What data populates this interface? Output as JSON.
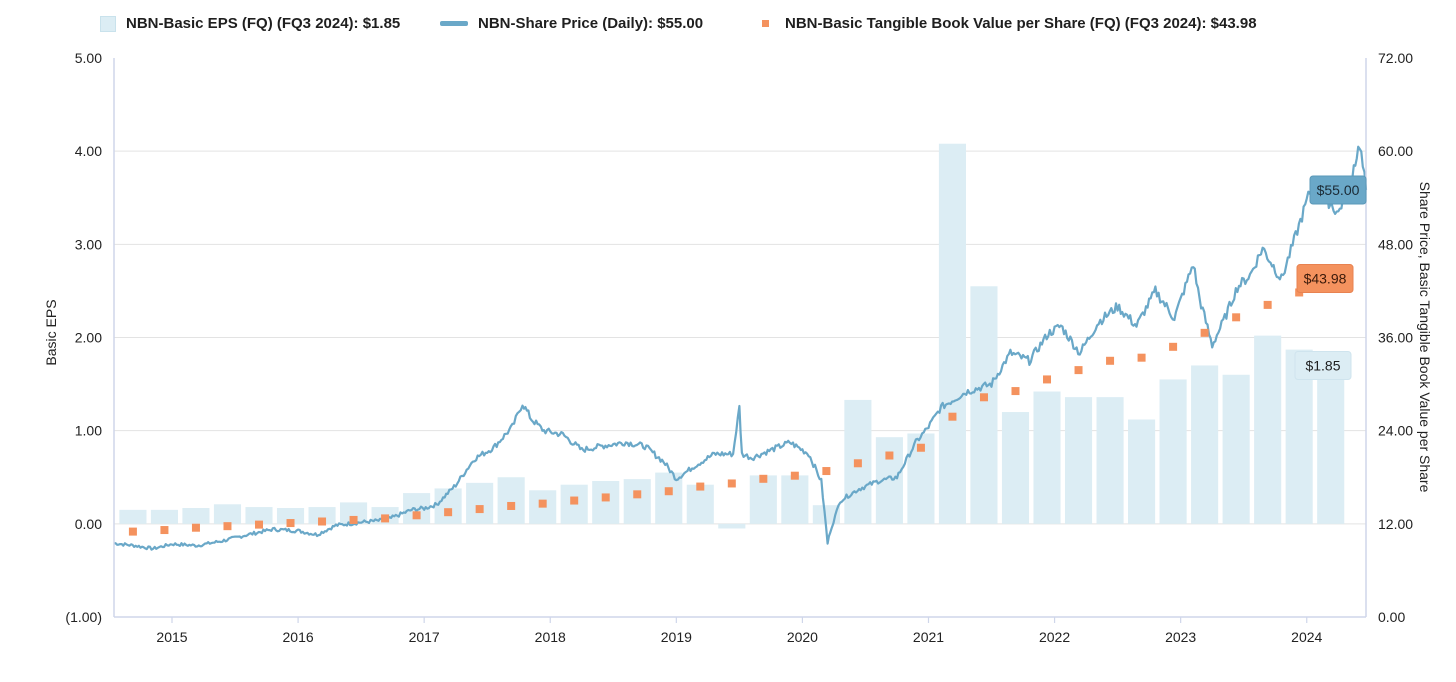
{
  "chart_data": {
    "type": "bar+line+scatter",
    "legend": [
      {
        "label": "NBN-Basic EPS (FQ) (FQ3 2024): $1.85",
        "kind": "bar",
        "color": "#dcedf4"
      },
      {
        "label": "NBN-Share Price (Daily): $55.00",
        "kind": "line",
        "color": "#6aa8c8"
      },
      {
        "label": "NBN-Basic Tangible Book Value per Share (FQ) (FQ3 2024): $43.98",
        "kind": "point",
        "color": "#f4925e"
      }
    ],
    "x_ticks": [
      "2015",
      "2016",
      "2017",
      "2018",
      "2019",
      "2020",
      "2021",
      "2022",
      "2023",
      "2024"
    ],
    "xlim": [
      2014.54,
      2024.47
    ],
    "y_left": {
      "label": "Basic EPS",
      "ticks": [
        "5.00",
        "4.00",
        "3.00",
        "2.00",
        "1.00",
        "0.00",
        "(1.00)"
      ],
      "range": [
        -1,
        5
      ]
    },
    "y_right": {
      "label": "Share Price, Basic Tangible Book Value per Share",
      "ticks": [
        "72.00",
        "60.00",
        "48.00",
        "36.00",
        "24.00",
        "12.00",
        "0.00"
      ],
      "range": [
        0,
        72
      ]
    },
    "eps_bars": {
      "x": [
        2014.69,
        2014.94,
        2015.19,
        2015.44,
        2015.69,
        2015.94,
        2016.19,
        2016.44,
        2016.69,
        2016.94,
        2017.19,
        2017.44,
        2017.69,
        2017.94,
        2018.19,
        2018.44,
        2018.69,
        2018.94,
        2019.19,
        2019.44,
        2019.69,
        2019.94,
        2020.19,
        2020.44,
        2020.69,
        2020.94,
        2021.19,
        2021.44,
        2021.69,
        2021.94,
        2022.19,
        2022.44,
        2022.69,
        2022.94,
        2023.19,
        2023.44,
        2023.69,
        2023.94,
        2024.19
      ],
      "values": [
        0.15,
        0.15,
        0.17,
        0.21,
        0.18,
        0.17,
        0.18,
        0.23,
        0.18,
        0.33,
        0.38,
        0.44,
        0.5,
        0.36,
        0.42,
        0.46,
        0.48,
        0.55,
        0.42,
        -0.05,
        0.52,
        0.52,
        0.2,
        1.33,
        0.93,
        0.97,
        4.08,
        2.55,
        1.2,
        1.42,
        1.36,
        1.36,
        1.12,
        1.55,
        1.7,
        1.6,
        2.02,
        1.87,
        1.85
      ]
    },
    "tbv_points": {
      "x": [
        2014.69,
        2014.94,
        2015.19,
        2015.44,
        2015.69,
        2015.94,
        2016.19,
        2016.44,
        2016.69,
        2016.94,
        2017.19,
        2017.44,
        2017.69,
        2017.94,
        2018.19,
        2018.44,
        2018.69,
        2018.94,
        2019.19,
        2019.44,
        2019.69,
        2019.94,
        2020.19,
        2020.44,
        2020.69,
        2020.94,
        2021.19,
        2021.44,
        2021.69,
        2021.94,
        2022.19,
        2022.44,
        2022.69,
        2022.94,
        2023.19,
        2023.44,
        2023.69,
        2023.94,
        2024.19
      ],
      "values": [
        11.0,
        11.2,
        11.5,
        11.7,
        11.9,
        12.1,
        12.3,
        12.5,
        12.7,
        13.1,
        13.5,
        13.9,
        14.3,
        14.6,
        15.0,
        15.4,
        15.8,
        16.2,
        16.8,
        17.2,
        17.8,
        18.2,
        18.8,
        19.8,
        20.8,
        21.8,
        25.8,
        28.3,
        29.1,
        30.6,
        31.8,
        33.0,
        33.4,
        34.8,
        36.6,
        38.6,
        40.2,
        41.8,
        43.98
      ]
    },
    "price_line": {
      "x": [
        2014.54,
        2014.7,
        2014.85,
        2015.0,
        2015.2,
        2015.4,
        2015.6,
        2015.8,
        2016.0,
        2016.15,
        2016.3,
        2016.5,
        2016.7,
        2016.9,
        2017.0,
        2017.1,
        2017.25,
        2017.4,
        2017.55,
        2017.7,
        2017.78,
        2017.85,
        2017.95,
        2018.1,
        2018.25,
        2018.4,
        2018.6,
        2018.75,
        2018.9,
        2019.0,
        2019.15,
        2019.3,
        2019.45,
        2019.5,
        2019.52,
        2019.6,
        2019.75,
        2019.9,
        2020.05,
        2020.15,
        2020.2,
        2020.22,
        2020.3,
        2020.45,
        2020.6,
        2020.75,
        2020.9,
        2021.0,
        2021.1,
        2021.3,
        2021.5,
        2021.65,
        2021.8,
        2021.95,
        2022.05,
        2022.2,
        2022.35,
        2022.5,
        2022.65,
        2022.8,
        2022.95,
        2023.1,
        2023.15,
        2023.25,
        2023.35,
        2023.45,
        2023.55,
        2023.65,
        2023.8,
        2023.95,
        2024.05,
        2024.15,
        2024.25,
        2024.35,
        2024.42,
        2024.47
      ],
      "values": [
        9.5,
        9.2,
        8.8,
        9.4,
        9.2,
        9.8,
        10.6,
        11.3,
        11.1,
        10.6,
        11.8,
        12.2,
        12.5,
        13.8,
        14.0,
        14.5,
        17.0,
        20.4,
        21.8,
        24.5,
        27.5,
        25.5,
        24.0,
        23.5,
        21.5,
        22.0,
        22.5,
        22.0,
        20.0,
        17.8,
        19.5,
        21.0,
        21.0,
        27.0,
        21.0,
        20.5,
        21.5,
        22.5,
        21.0,
        17.5,
        9.5,
        11.0,
        15.0,
        16.5,
        17.5,
        18.0,
        22.5,
        24.5,
        27.0,
        29.0,
        30.0,
        34.0,
        33.0,
        36.5,
        37.5,
        34.0,
        38.0,
        40.0,
        37.5,
        42.0,
        38.5,
        45.5,
        41.0,
        35.0,
        38.5,
        42.5,
        44.0,
        47.5,
        43.5,
        51.0,
        56.0,
        54.0,
        52.0,
        56.5,
        61.0,
        55.0
      ]
    },
    "end_labels": {
      "price": "$55.00",
      "tbv": "$43.98",
      "eps": "$1.85"
    },
    "grid": "horizontal"
  }
}
